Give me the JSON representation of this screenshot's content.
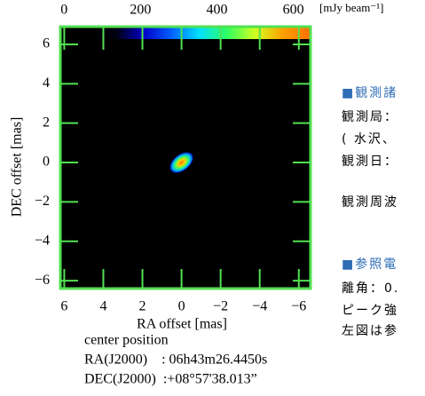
{
  "chart_data": {
    "type": "image",
    "xlabel": "RA offset [mas]",
    "ylabel": "DEC offset [mas]",
    "xlim": [
      6.2,
      -6.6
    ],
    "ylim": [
      -6.4,
      6.9
    ],
    "xticks": [
      6,
      4,
      2,
      0,
      {
        "value": -2,
        "label": "−2"
      },
      {
        "value": -4,
        "label": "−4"
      },
      {
        "value": -6,
        "label": "−6"
      }
    ],
    "yticks": [
      6,
      4,
      2,
      0,
      {
        "value": -2,
        "label": "−2"
      },
      {
        "value": -4,
        "label": "−4"
      },
      {
        "value": -6,
        "label": "−6"
      }
    ],
    "frame_color": "#52e052",
    "colorbar": {
      "lim": [
        -10,
        645
      ],
      "ticks": [
        0,
        200,
        400,
        600
      ],
      "unit": "[mJy beam⁻¹]",
      "colors": [
        "#000000",
        "#000000",
        "#000010",
        "#0000c8",
        "#0060ff",
        "#00e0ff",
        "#30ff60",
        "#d0ff20",
        "#ffa000",
        "#ff7000"
      ]
    }
  },
  "caption": {
    "title": "center position",
    "ra": "RA(J2000)    : 06h43m26.4450s",
    "dec": "DEC(J2000)  :+08°57'38.013”"
  },
  "side_text": {
    "heading1": "■観測諸",
    "line1": "観測局：",
    "line2": "( 水沢、",
    "line3": "観測日：",
    "line4": "観測周波",
    "heading2": "■参照電",
    "line5": "離角：0.",
    "line6": "ピーク強",
    "line7": "左図は参"
  }
}
